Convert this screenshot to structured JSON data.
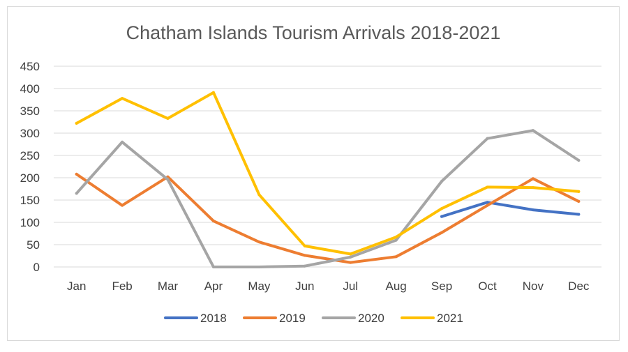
{
  "chart_data": {
    "type": "line",
    "title": "Chatham Islands Tourism Arrivals  2018-2021",
    "xlabel": "",
    "ylabel": "",
    "categories": [
      "Jan",
      "Feb",
      "Mar",
      "Apr",
      "May",
      "Jun",
      "Jul",
      "Aug",
      "Sep",
      "Oct",
      "Nov",
      "Dec"
    ],
    "ylim": [
      0,
      450
    ],
    "yticks": [
      0,
      50,
      100,
      150,
      200,
      250,
      300,
      350,
      400,
      450
    ],
    "grid": true,
    "legend_position": "bottom",
    "series": [
      {
        "name": "2018",
        "color": "#4472C4",
        "values": [
          null,
          null,
          null,
          null,
          null,
          null,
          null,
          null,
          113,
          145,
          128,
          118
        ]
      },
      {
        "name": "2019",
        "color": "#ED7D31",
        "values": [
          208,
          138,
          202,
          103,
          56,
          26,
          10,
          23,
          77,
          138,
          198,
          147
        ]
      },
      {
        "name": "2020",
        "color": "#A5A5A5",
        "values": [
          165,
          280,
          196,
          0,
          0,
          2,
          22,
          60,
          192,
          288,
          306,
          239
        ]
      },
      {
        "name": "2021",
        "color": "#FFC000",
        "values": [
          322,
          378,
          333,
          391,
          162,
          47,
          29,
          67,
          131,
          179,
          178,
          169
        ]
      }
    ]
  }
}
